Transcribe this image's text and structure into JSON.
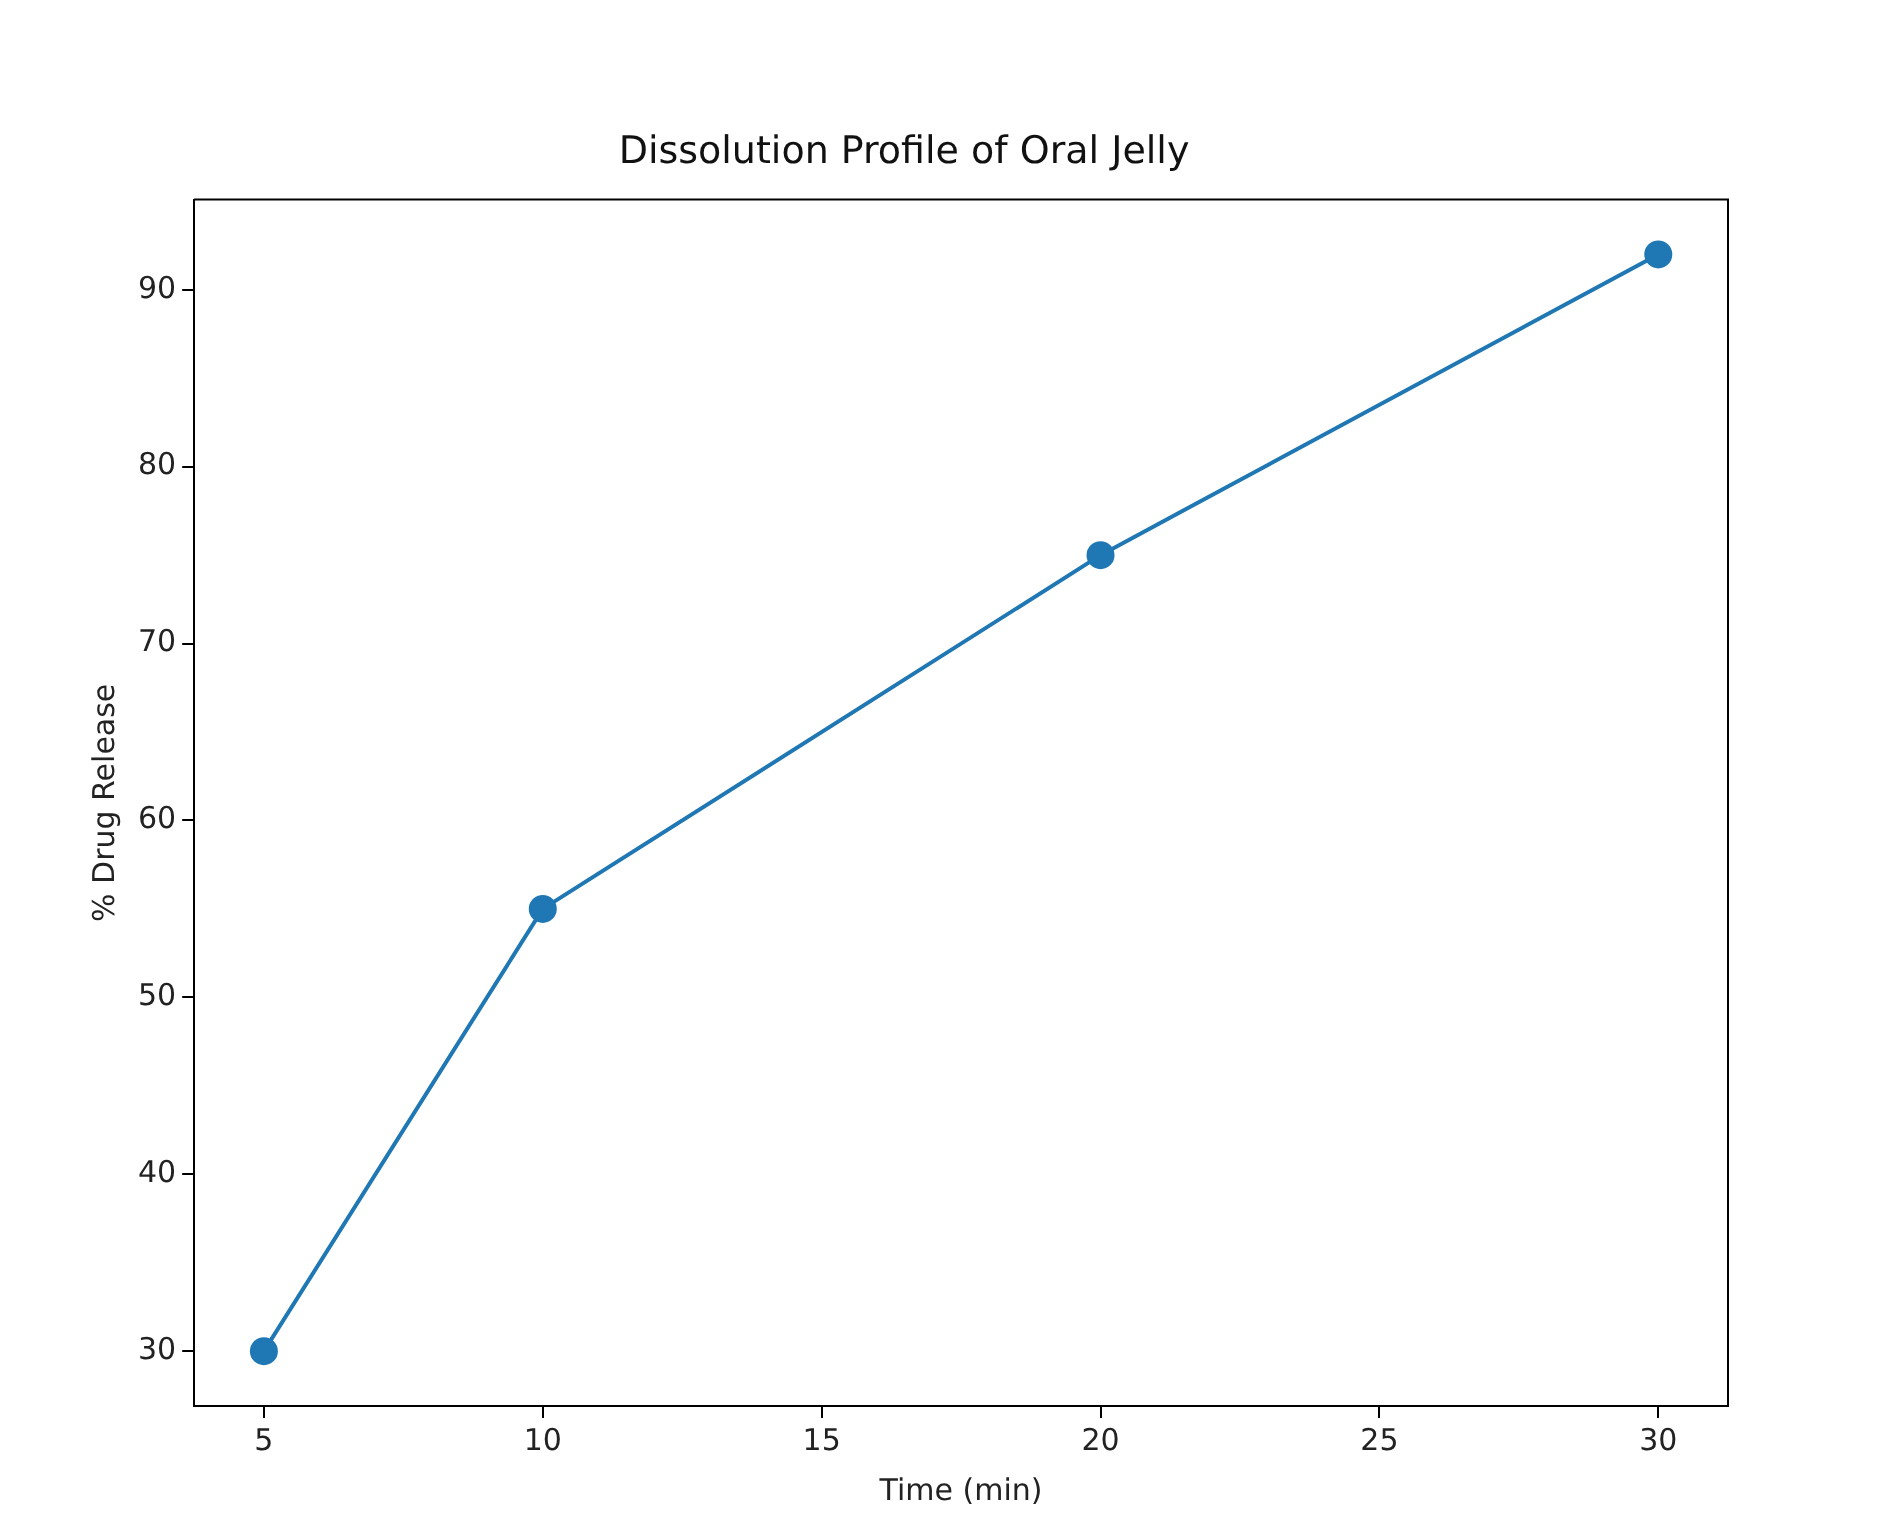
{
  "chart_data": {
    "type": "line",
    "title": "Dissolution Profile of Oral Jelly",
    "xlabel": "Time (min)",
    "ylabel": "% Drug Release",
    "x": [
      5,
      10,
      20,
      30
    ],
    "series": [
      {
        "color": "#1f77b4",
        "values": [
          30,
          55,
          75,
          92
        ]
      }
    ],
    "xlim": [
      3.75,
      31.25
    ],
    "xticks": [
      5,
      10,
      15,
      20,
      25,
      30
    ],
    "ylim": [
      26.9,
      95.1
    ],
    "yticks": [
      30,
      40,
      50,
      60,
      70,
      80,
      90
    ],
    "grid": false,
    "legend": false,
    "marker": "circle",
    "line_style": "solid"
  }
}
